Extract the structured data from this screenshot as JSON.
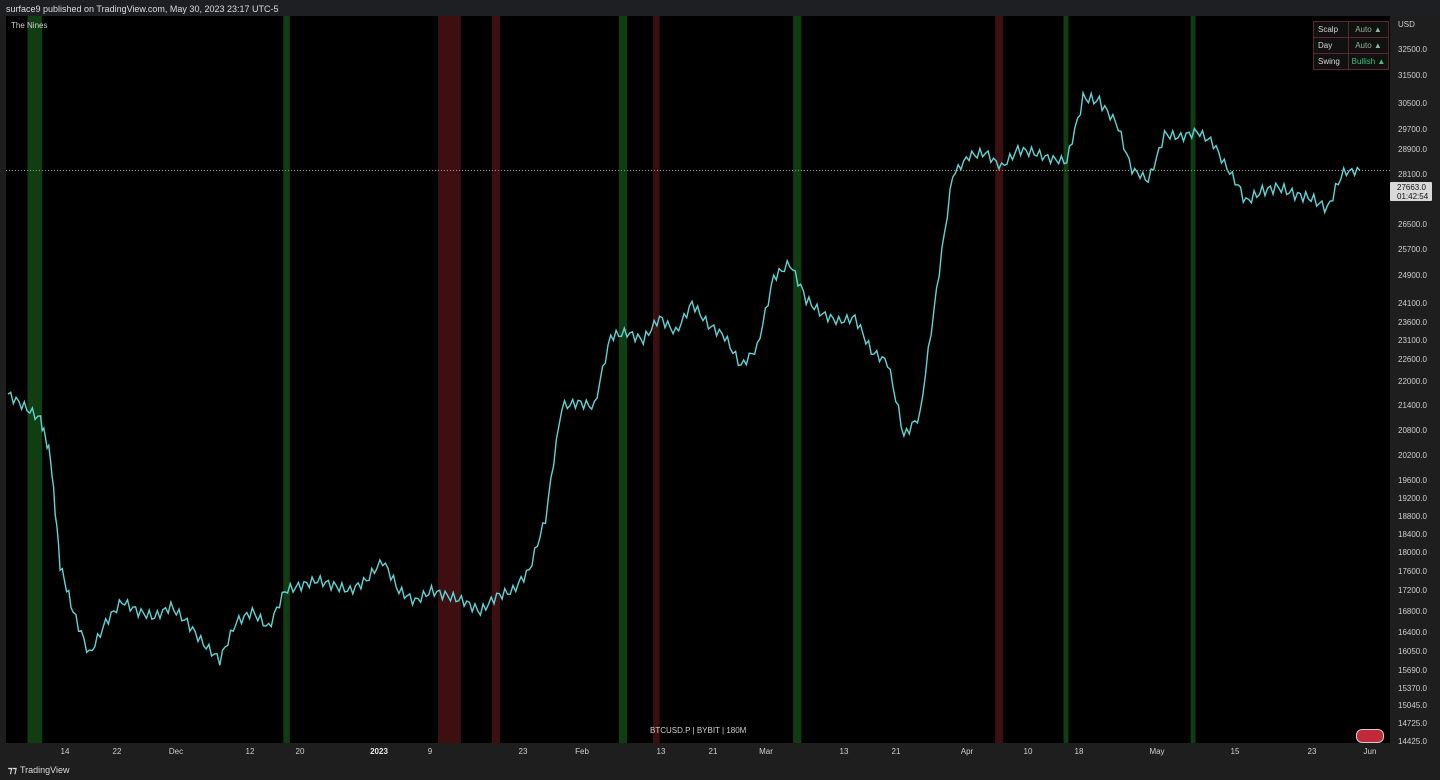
{
  "header": {
    "published": "surface9 published on TradingView.com, May 30, 2023 23:17 UTC-5"
  },
  "indicator": {
    "name": "The Nines"
  },
  "symbol": {
    "label": "BTCUSD.P | BYBIT | 180M"
  },
  "footer": {
    "brand": "TradingView",
    "brand_icon": "tradingview-logo-icon"
  },
  "status_table": {
    "rows": [
      {
        "key": "Scalp",
        "value": "Auto ▲"
      },
      {
        "key": "Day",
        "value": "Auto ▲"
      },
      {
        "key": "Swing",
        "value": "Bullish ▲"
      }
    ]
  },
  "current_price": {
    "value": "27663.0",
    "countdown": "01:42:54"
  },
  "chart_data": {
    "type": "line",
    "ylabel": "USD",
    "y_ticks": [
      32500.0,
      31500.0,
      30500.0,
      29700.0,
      28900.0,
      28100.0,
      27300.0,
      26500.0,
      25700.0,
      24900.0,
      24100.0,
      23600.0,
      23100.0,
      22600.0,
      22000.0,
      21400.0,
      20800.0,
      20200.0,
      19600.0,
      19200.0,
      18800.0,
      18400.0,
      18000.0,
      17600.0,
      17200.0,
      16800.0,
      16400.0,
      16050.0,
      15690.0,
      15370.0,
      15045.0,
      14725.0,
      14425.0
    ],
    "y_tick_labels": [
      "32500.0",
      "31500.0",
      "30500.0",
      "29700.0",
      "28900.0",
      "28100.0",
      "27300.0",
      "26500.0",
      "25700.0",
      "24900.0",
      "24100.0",
      "23600.0",
      "23100.0",
      "22600.0",
      "22000.0",
      "21400.0",
      "20800.0",
      "20200.0",
      "19600.0",
      "19200.0",
      "18800.0",
      "18400.0",
      "18000.0",
      "17600.0",
      "17200.0",
      "16800.0",
      "16400.0",
      "16050.0",
      "15690.0",
      "15370.0",
      "15045.0",
      "14725.0",
      "14425.0"
    ],
    "x_ticks": [
      {
        "label": "14",
        "bold": false
      },
      {
        "label": "22",
        "bold": false
      },
      {
        "label": "Dec",
        "bold": false
      },
      {
        "label": "12",
        "bold": false
      },
      {
        "label": "20",
        "bold": false
      },
      {
        "label": "2023",
        "bold": true
      },
      {
        "label": "9",
        "bold": false
      },
      {
        "label": "23",
        "bold": false
      },
      {
        "label": "Feb",
        "bold": false
      },
      {
        "label": "13",
        "bold": false
      },
      {
        "label": "21",
        "bold": false
      },
      {
        "label": "Mar",
        "bold": false
      },
      {
        "label": "13",
        "bold": false
      },
      {
        "label": "21",
        "bold": false
      },
      {
        "label": "Apr",
        "bold": false
      },
      {
        "label": "10",
        "bold": false
      },
      {
        "label": "18",
        "bold": false
      },
      {
        "label": "May",
        "bold": false
      },
      {
        "label": "15",
        "bold": false
      },
      {
        "label": "23",
        "bold": false
      },
      {
        "label": "Jun",
        "bold": false
      }
    ],
    "series": [
      {
        "color": "#5fd4d6",
        "points": [
          [
            0,
            21300
          ],
          [
            1,
            21000
          ],
          [
            2,
            20700
          ],
          [
            2.6,
            19800
          ],
          [
            3.2,
            17400
          ],
          [
            4,
            16500
          ],
          [
            5,
            15700
          ],
          [
            6,
            16300
          ],
          [
            7,
            16700
          ],
          [
            8,
            16500
          ],
          [
            9,
            16400
          ],
          [
            10,
            16600
          ],
          [
            11,
            16300
          ],
          [
            12,
            15900
          ],
          [
            13,
            15600
          ],
          [
            14,
            16300
          ],
          [
            15,
            16500
          ],
          [
            16,
            16200
          ],
          [
            17,
            16900
          ],
          [
            18,
            17000
          ],
          [
            19,
            17100
          ],
          [
            20,
            17000
          ],
          [
            21,
            16900
          ],
          [
            22,
            17100
          ],
          [
            23,
            17500
          ],
          [
            24,
            16900
          ],
          [
            25,
            16700
          ],
          [
            26,
            16900
          ],
          [
            27,
            16800
          ],
          [
            28,
            16700
          ],
          [
            29,
            16500
          ],
          [
            30,
            16800
          ],
          [
            31,
            16900
          ],
          [
            32,
            17300
          ],
          [
            33,
            18400
          ],
          [
            34,
            21000
          ],
          [
            35,
            21100
          ],
          [
            36,
            21000
          ],
          [
            37,
            22800
          ],
          [
            38,
            22900
          ],
          [
            39,
            22700
          ],
          [
            40,
            23300
          ],
          [
            41,
            22900
          ],
          [
            42,
            23700
          ],
          [
            43,
            23100
          ],
          [
            44,
            22800
          ],
          [
            45,
            22000
          ],
          [
            46,
            22500
          ],
          [
            47,
            24400
          ],
          [
            48,
            24800
          ],
          [
            49,
            23800
          ],
          [
            50,
            23400
          ],
          [
            51,
            23200
          ],
          [
            52,
            23300
          ],
          [
            53,
            22400
          ],
          [
            54,
            22100
          ],
          [
            55,
            20300
          ],
          [
            56,
            20800
          ],
          [
            57,
            24000
          ],
          [
            58,
            27500
          ],
          [
            59,
            28200
          ],
          [
            60,
            28300
          ],
          [
            61,
            27800
          ],
          [
            62,
            28400
          ],
          [
            63,
            28300
          ],
          [
            64,
            28100
          ],
          [
            65,
            28000
          ],
          [
            66,
            30200
          ],
          [
            67,
            30100
          ],
          [
            68,
            29400
          ],
          [
            69,
            27700
          ],
          [
            70,
            27300
          ],
          [
            71,
            28900
          ],
          [
            72,
            28800
          ],
          [
            73,
            29000
          ],
          [
            74,
            28600
          ],
          [
            75,
            27600
          ],
          [
            76,
            26700
          ],
          [
            77,
            27000
          ],
          [
            78,
            27100
          ],
          [
            79,
            26900
          ],
          [
            80,
            26800
          ],
          [
            81,
            26500
          ],
          [
            82,
            27600
          ],
          [
            83,
            27663
          ]
        ]
      }
    ],
    "x_domain": [
      0,
      83
    ],
    "current_price": 27663.0,
    "background_bands": [
      {
        "x": 1.2,
        "w": 0.9,
        "color": "green"
      },
      {
        "x": 16.9,
        "w": 0.4,
        "color": "green"
      },
      {
        "x": 26.4,
        "w": 1.4,
        "color": "red"
      },
      {
        "x": 29.7,
        "w": 0.5,
        "color": "red"
      },
      {
        "x": 37.5,
        "w": 0.5,
        "color": "green"
      },
      {
        "x": 39.6,
        "w": 0.4,
        "color": "red"
      },
      {
        "x": 48.2,
        "w": 0.5,
        "color": "green"
      },
      {
        "x": 60.6,
        "w": 0.5,
        "color": "red"
      },
      {
        "x": 64.8,
        "w": 0.3,
        "color": "green"
      },
      {
        "x": 72.6,
        "w": 0.3,
        "color": "green"
      }
    ]
  }
}
